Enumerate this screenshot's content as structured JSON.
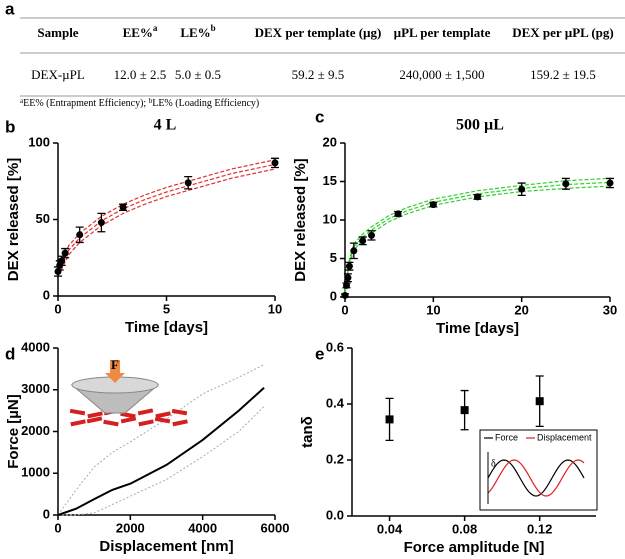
{
  "table": {
    "panel_label": "a",
    "headers": [
      {
        "text": "Sample"
      },
      {
        "text": "EE%",
        "sup": "a"
      },
      {
        "text": "LE%",
        "sup": "b"
      },
      {
        "text": "DEX per template (µg)"
      },
      {
        "text": "µPL per template"
      },
      {
        "text": "DEX per µPL (pg)"
      }
    ],
    "rows": [
      [
        "DEX-µPL",
        "12.0 ± 2.5",
        "5.0 ± 0.5",
        "59.2 ± 9.5",
        "240,000 ± 1,500",
        "159.2 ± 19.5"
      ]
    ],
    "footnote": [
      {
        "sup": "a",
        "text": "EE% (Entrapment Efficiency); "
      },
      {
        "sup": "b",
        "text": "LE% (Loading Efficiency)"
      }
    ]
  },
  "chart_data": [
    {
      "type": "scatter",
      "panel_label": "b",
      "title": "4 L",
      "x_label": "Time [days]",
      "y_label": "DEX released [%]",
      "xlim": [
        0,
        10
      ],
      "ylim": [
        0,
        100
      ],
      "xticks": [
        0,
        5,
        10
      ],
      "yticks": [
        0,
        50,
        100
      ],
      "marker": "circle",
      "color": "#000000",
      "x": [
        0,
        0.08,
        0.17,
        0.33,
        1,
        2,
        3,
        6,
        10
      ],
      "values": [
        16,
        20,
        23,
        28,
        40,
        48,
        58,
        74,
        87
      ],
      "errors": [
        3,
        3,
        3,
        3,
        5,
        6,
        2,
        4,
        3
      ],
      "fit": {
        "color": "#e03030",
        "x": [
          0,
          0.5,
          1,
          2,
          3,
          4,
          5,
          6,
          7,
          8,
          9,
          10
        ],
        "values": [
          15,
          30,
          38,
          49,
          57,
          63,
          68,
          72,
          76,
          80,
          83,
          86
        ],
        "lower": [
          13,
          27,
          35,
          46,
          54,
          60,
          65,
          69,
          73,
          77,
          80,
          83
        ],
        "upper": [
          17,
          33,
          41,
          52,
          60,
          66,
          71,
          75,
          79,
          83,
          86,
          89
        ]
      }
    },
    {
      "type": "scatter",
      "panel_label": "c",
      "title": "500 µL",
      "x_label": "Time [days]",
      "y_label": "DEX released [%]",
      "xlim": [
        0,
        30
      ],
      "ylim": [
        0,
        20
      ],
      "xticks": [
        0,
        10,
        20,
        30
      ],
      "yticks": [
        0,
        5,
        10,
        15,
        20
      ],
      "marker": "circle",
      "color": "#000000",
      "x": [
        0,
        0.17,
        0.33,
        0.5,
        1,
        2,
        3,
        6,
        10,
        15,
        20,
        25,
        30
      ],
      "values": [
        0.2,
        1.5,
        2.5,
        4,
        6,
        7.3,
        8,
        10.8,
        12,
        13,
        14,
        14.7,
        14.8
      ],
      "errors": [
        0.2,
        0.3,
        0.5,
        0.5,
        1,
        0.5,
        0.6,
        0.3,
        0.3,
        0.3,
        0.8,
        0.7,
        0.6
      ],
      "fit": {
        "color": "#30d030",
        "x": [
          0,
          0.5,
          1,
          2,
          3,
          5,
          7,
          10,
          15,
          20,
          25,
          30
        ],
        "values": [
          0.5,
          4.5,
          6.5,
          7.8,
          8.7,
          10.2,
          11.2,
          12.3,
          13.4,
          14.1,
          14.6,
          14.9
        ],
        "lower": [
          0.3,
          4.1,
          6.1,
          7.4,
          8.3,
          9.8,
          10.8,
          11.9,
          13,
          13.7,
          14.1,
          14.4
        ],
        "upper": [
          0.7,
          4.9,
          6.9,
          8.2,
          9.1,
          10.6,
          11.6,
          12.7,
          13.8,
          14.5,
          15.1,
          15.4
        ]
      }
    },
    {
      "type": "line",
      "panel_label": "d",
      "x_label": "Displacement [nm]",
      "y_label": "Force [µN]",
      "icon_label": "F",
      "xlim": [
        0,
        6000
      ],
      "ylim": [
        0,
        4000
      ],
      "xticks": [
        0,
        2000,
        4000,
        6000
      ],
      "yticks": [
        0,
        1000,
        2000,
        3000,
        4000
      ],
      "color": "#000000",
      "x": [
        0,
        500,
        1000,
        1500,
        2000,
        3000,
        4000,
        5000,
        5700
      ],
      "values": [
        0,
        150,
        380,
        600,
        750,
        1200,
        1800,
        2500,
        3050
      ],
      "band": {
        "color": "#aaaaaa",
        "upper": [
          0,
          600,
          1150,
          1500,
          1750,
          2300,
          2900,
          3300,
          3600
        ],
        "lower": [
          0,
          0,
          50,
          250,
          450,
          850,
          1400,
          2000,
          2600
        ]
      }
    },
    {
      "type": "scatter",
      "panel_label": "e",
      "x_label": "Force amplitude [N]",
      "y_label": "tanδ",
      "xlim": [
        0.02,
        0.15
      ],
      "ylim": [
        0,
        0.6
      ],
      "xticks": [
        0.04,
        0.08,
        0.12
      ],
      "yticks": [
        {
          "value": 0,
          "label": "0.0"
        },
        0.2,
        0.4,
        0.6
      ],
      "marker": "square",
      "color": "#000000",
      "x": [
        0.04,
        0.08,
        0.12
      ],
      "values": [
        0.345,
        0.378,
        0.41
      ],
      "errors": [
        0.075,
        0.07,
        0.09
      ],
      "inset": {
        "legend": [
          {
            "name": "Force",
            "color": "#000000"
          },
          {
            "name": "Displacement",
            "color": "#e02020"
          }
        ],
        "annotation": "δ"
      }
    }
  ]
}
